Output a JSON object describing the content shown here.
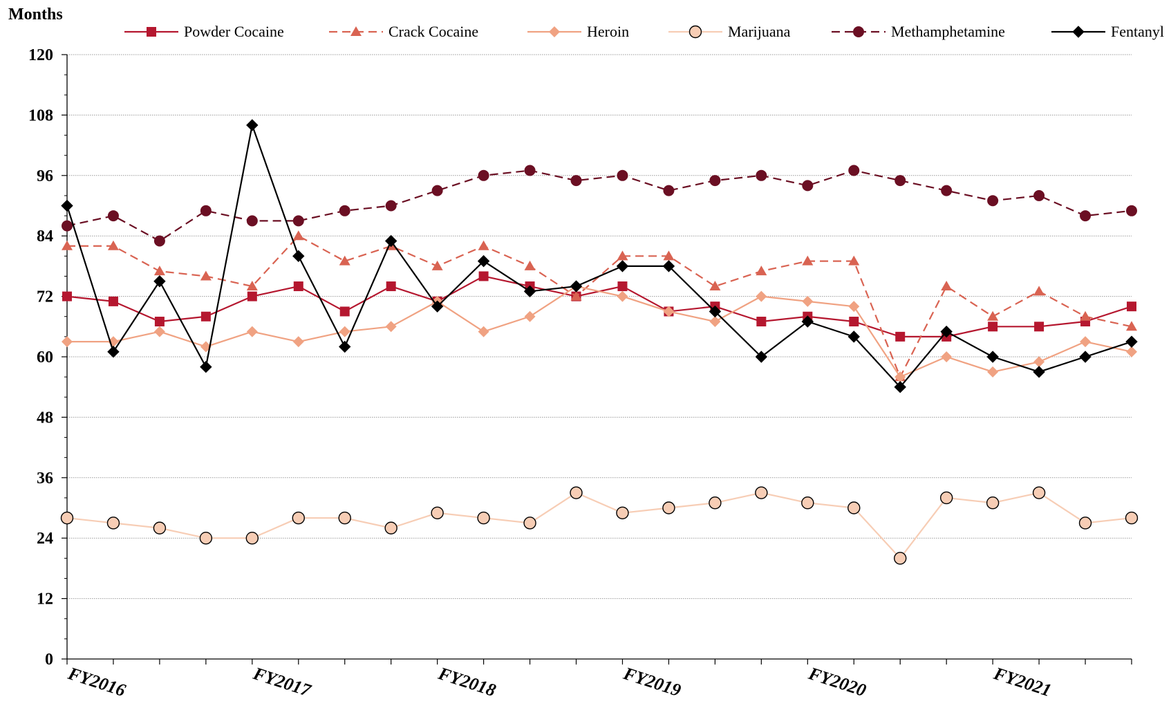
{
  "chart_data": {
    "type": "line",
    "title": "",
    "ylabel": "Months",
    "xlabel": "",
    "ylim": [
      0,
      120
    ],
    "yticks": [
      0,
      12,
      24,
      36,
      48,
      60,
      72,
      84,
      96,
      108,
      120
    ],
    "grid": true,
    "legend_position": "top",
    "x_tick_labels": [
      "FY2016",
      "FY2017",
      "FY2018",
      "FY2019",
      "FY2020",
      "FY2021"
    ],
    "quarters_per_label": 4,
    "series": [
      {
        "name": "Powder Cocaine",
        "color": "#b5172f",
        "marker": "square",
        "dash": false,
        "values": [
          72,
          71,
          67,
          68,
          72,
          74,
          69,
          74,
          71,
          76,
          74,
          72,
          74,
          69,
          70,
          67,
          68,
          67,
          64,
          64,
          66,
          66,
          67,
          70
        ]
      },
      {
        "name": "Crack Cocaine",
        "color": "#d96352",
        "marker": "triangle",
        "dash": true,
        "values": [
          82,
          82,
          77,
          76,
          74,
          84,
          79,
          82,
          78,
          82,
          78,
          72,
          80,
          80,
          74,
          77,
          79,
          79,
          56,
          74,
          68,
          73,
          68,
          66
        ]
      },
      {
        "name": "Heroin",
        "color": "#f0a282",
        "marker": "diamond",
        "dash": false,
        "values": [
          63,
          63,
          65,
          62,
          65,
          63,
          65,
          66,
          71,
          65,
          68,
          74,
          72,
          69,
          67,
          72,
          71,
          70,
          56,
          60,
          57,
          59,
          63,
          61
        ]
      },
      {
        "name": "Marijuana",
        "color": "#f7cdb5",
        "marker": "circle-open",
        "dash": false,
        "values": [
          28,
          27,
          26,
          24,
          24,
          28,
          28,
          26,
          29,
          28,
          27,
          33,
          29,
          30,
          31,
          33,
          31,
          30,
          20,
          32,
          31,
          33,
          27,
          28
        ]
      },
      {
        "name": "Methamphetamine",
        "color": "#6b0f23",
        "marker": "circle",
        "dash": true,
        "values": [
          86,
          88,
          83,
          89,
          87,
          87,
          89,
          90,
          93,
          96,
          97,
          95,
          96,
          93,
          95,
          96,
          94,
          97,
          95,
          93,
          91,
          92,
          88,
          89
        ]
      },
      {
        "name": "Fentanyl",
        "color": "#000000",
        "marker": "diamond",
        "dash": false,
        "values": [
          90,
          61,
          75,
          58,
          106,
          80,
          62,
          83,
          70,
          79,
          73,
          74,
          78,
          78,
          69,
          60,
          67,
          64,
          54,
          65,
          60,
          57,
          60,
          63
        ]
      }
    ]
  }
}
